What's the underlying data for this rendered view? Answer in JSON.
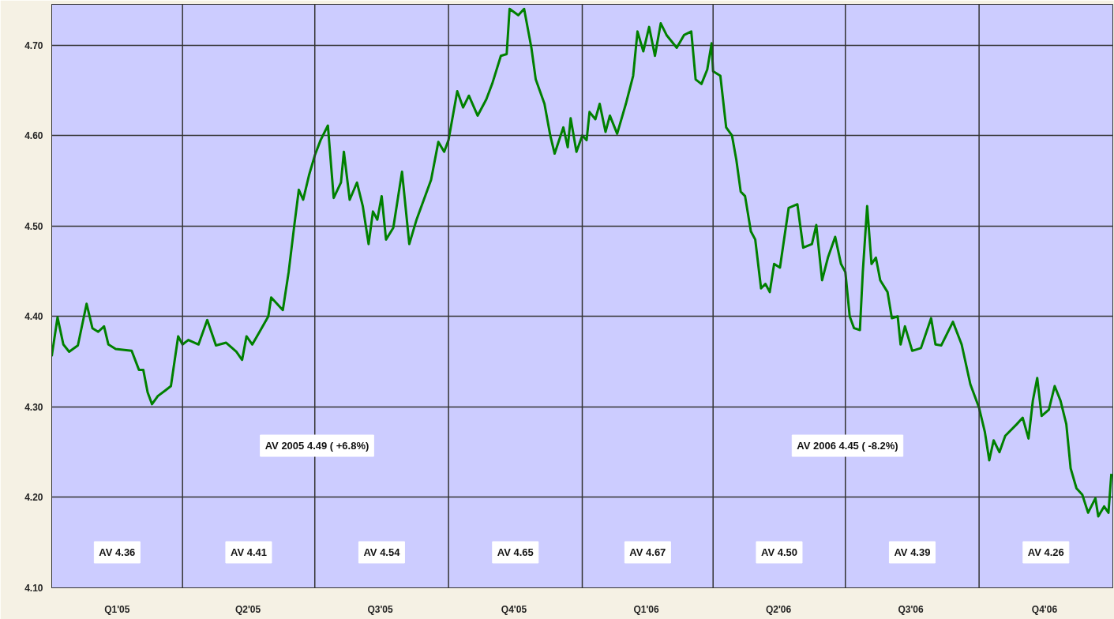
{
  "chart_data": {
    "type": "line",
    "xlim": [
      "2005-01-01",
      "2007-01-01"
    ],
    "xticks": [
      {
        "value": "2005-02-15",
        "label": "Q1'05"
      },
      {
        "value": "2005-05-16",
        "label": "Q2'05"
      },
      {
        "value": "2005-08-15",
        "label": "Q3'05"
      },
      {
        "value": "2005-11-15",
        "label": "Q4'05"
      },
      {
        "value": "2006-02-14",
        "label": "Q1'06"
      },
      {
        "value": "2006-05-16",
        "label": "Q2'06"
      },
      {
        "value": "2006-08-15",
        "label": "Q3'06"
      },
      {
        "value": "2006-11-15",
        "label": "Q4'06"
      }
    ],
    "ylim": [
      4.1,
      4.745
    ],
    "yticks": [
      {
        "value": 4.1,
        "label": "4.10"
      },
      {
        "value": 4.2,
        "label": "4.20"
      },
      {
        "value": 4.3,
        "label": "4.30"
      },
      {
        "value": 4.4,
        "label": "4.40"
      },
      {
        "value": 4.5,
        "label": "4.50"
      },
      {
        "value": 4.6,
        "label": "4.60"
      },
      {
        "value": 4.7,
        "label": "4.70"
      }
    ],
    "grid": "y",
    "marker": "none",
    "line_style": "solid",
    "ref_lines": [
      {
        "axis": "x",
        "value": "2005-04-01",
        "color": "#333333"
      },
      {
        "axis": "x",
        "value": "2005-07-01",
        "color": "#333333"
      },
      {
        "axis": "x",
        "value": "2005-10-01",
        "color": "#333333"
      },
      {
        "axis": "x",
        "value": "2006-01-01",
        "color": "#333333"
      },
      {
        "axis": "x",
        "value": "2006-04-01",
        "color": "#333333"
      },
      {
        "axis": "x",
        "value": "2006-07-01",
        "color": "#333333"
      },
      {
        "axis": "x",
        "value": "2006-10-01",
        "color": "#333333"
      }
    ],
    "annotations": [
      "AV 4.36",
      "AV 4.41",
      "AV 4.54",
      "AV 4.65",
      "AV 4.67",
      "AV 4.50",
      "AV 4.39",
      "AV 4.26",
      "AV 2005 4.49 ( +6.8%)",
      "AV 2006 4.45 ( -8.2%)"
    ],
    "series": [
      {
        "color": "#008000",
        "x": [
          "2005-01-01",
          "2005-01-05",
          "2005-01-09",
          "2005-01-13",
          "2005-01-19",
          "2005-01-25",
          "2005-01-29",
          "2005-02-02",
          "2005-02-06",
          "2005-02-09",
          "2005-02-14",
          "2005-02-20",
          "2005-02-25",
          "2005-03-02",
          "2005-03-05",
          "2005-03-08",
          "2005-03-11",
          "2005-03-15",
          "2005-03-20",
          "2005-03-24",
          "2005-03-29",
          "2005-04-01",
          "2005-04-05",
          "2005-04-12",
          "2005-04-18",
          "2005-04-24",
          "2005-05-01",
          "2005-05-08",
          "2005-05-12",
          "2005-05-15",
          "2005-05-19",
          "2005-05-24",
          "2005-05-30",
          "2005-06-01",
          "2005-06-09",
          "2005-06-13",
          "2005-06-17",
          "2005-06-20",
          "2005-06-23",
          "2005-06-27",
          "2005-07-01",
          "2005-07-05",
          "2005-07-10",
          "2005-07-14",
          "2005-07-19",
          "2005-07-21",
          "2005-07-25",
          "2005-07-30",
          "2005-08-03",
          "2005-08-07",
          "2005-08-10",
          "2005-08-13",
          "2005-08-16",
          "2005-08-19",
          "2005-08-24",
          "2005-08-30",
          "2005-09-04",
          "2005-09-09",
          "2005-09-14",
          "2005-09-19",
          "2005-09-24",
          "2005-09-28",
          "2005-10-01",
          "2005-10-07",
          "2005-10-11",
          "2005-10-15",
          "2005-10-21",
          "2005-10-27",
          "2005-10-31",
          "2005-11-06",
          "2005-11-10",
          "2005-11-12",
          "2005-11-18",
          "2005-11-22",
          "2005-11-27",
          "2005-11-30",
          "2005-12-06",
          "2005-12-10",
          "2005-12-13",
          "2005-12-19",
          "2005-12-22",
          "2005-12-24",
          "2005-12-28",
          "2006-01-01",
          "2006-01-04",
          "2006-01-06",
          "2006-01-10",
          "2006-01-13",
          "2006-01-17",
          "2006-01-20",
          "2006-01-25",
          "2006-01-31",
          "2006-02-05",
          "2006-02-08",
          "2006-02-12",
          "2006-02-16",
          "2006-02-20",
          "2006-02-24",
          "2006-02-28",
          "2006-03-07",
          "2006-03-12",
          "2006-03-17",
          "2006-03-20",
          "2006-03-24",
          "2006-03-28",
          "2006-03-31",
          "2006-04-01",
          "2006-04-06",
          "2006-04-10",
          "2006-04-14",
          "2006-04-17",
          "2006-04-20",
          "2006-04-23",
          "2006-04-27",
          "2006-04-30",
          "2006-05-04",
          "2006-05-07",
          "2006-05-10",
          "2006-05-13",
          "2006-05-17",
          "2006-05-23",
          "2006-05-29",
          "2006-06-02",
          "2006-06-08",
          "2006-06-11",
          "2006-06-15",
          "2006-06-19",
          "2006-06-24",
          "2006-06-28",
          "2006-07-01",
          "2006-07-04",
          "2006-07-07",
          "2006-07-11",
          "2006-07-13",
          "2006-07-16",
          "2006-07-19",
          "2006-07-22",
          "2006-07-25",
          "2006-07-30",
          "2006-08-02",
          "2006-08-06",
          "2006-08-08",
          "2006-08-11",
          "2006-08-16",
          "2006-08-22",
          "2006-08-29",
          "2006-09-01",
          "2006-09-05",
          "2006-09-13",
          "2006-09-19",
          "2006-09-25",
          "2006-10-01",
          "2006-10-05",
          "2006-10-08",
          "2006-10-11",
          "2006-10-15",
          "2006-10-19",
          "2006-10-27",
          "2006-10-31",
          "2006-11-04",
          "2006-11-07",
          "2006-11-10",
          "2006-11-13",
          "2006-11-18",
          "2006-11-22",
          "2006-11-26",
          "2006-11-30",
          "2006-12-03",
          "2006-12-07",
          "2006-12-11",
          "2006-12-15",
          "2006-12-20",
          "2006-12-22",
          "2006-12-26",
          "2006-12-29",
          "2006-12-31"
        ],
        "values": [
          4.356,
          4.399,
          4.369,
          4.361,
          4.368,
          4.414,
          4.387,
          4.383,
          4.389,
          4.369,
          4.364,
          4.363,
          4.362,
          4.341,
          4.341,
          4.316,
          4.303,
          4.312,
          4.318,
          4.323,
          4.378,
          4.369,
          4.374,
          4.369,
          4.396,
          4.368,
          4.371,
          4.361,
          4.352,
          4.378,
          4.369,
          4.383,
          4.4,
          4.421,
          4.407,
          4.449,
          4.502,
          4.54,
          4.529,
          4.556,
          4.578,
          4.595,
          4.611,
          4.531,
          4.548,
          4.582,
          4.529,
          4.548,
          4.522,
          4.48,
          4.516,
          4.507,
          4.533,
          4.485,
          4.498,
          4.56,
          4.48,
          4.507,
          4.529,
          4.551,
          4.593,
          4.582,
          4.595,
          4.649,
          4.631,
          4.644,
          4.622,
          4.64,
          4.657,
          4.688,
          4.69,
          4.74,
          4.733,
          4.74,
          4.697,
          4.662,
          4.635,
          4.6,
          4.58,
          4.609,
          4.587,
          4.619,
          4.582,
          4.6,
          4.595,
          4.626,
          4.618,
          4.635,
          4.604,
          4.622,
          4.602,
          4.635,
          4.666,
          4.715,
          4.693,
          4.72,
          4.688,
          4.724,
          4.711,
          4.697,
          4.711,
          4.715,
          4.662,
          4.657,
          4.673,
          4.702,
          4.671,
          4.666,
          4.609,
          4.6,
          4.573,
          4.538,
          4.533,
          4.494,
          4.485,
          4.431,
          4.436,
          4.427,
          4.458,
          4.454,
          4.52,
          4.524,
          4.476,
          4.48,
          4.501,
          4.44,
          4.465,
          4.488,
          4.458,
          4.449,
          4.4,
          4.387,
          4.385,
          4.449,
          4.522,
          4.458,
          4.465,
          4.44,
          4.427,
          4.398,
          4.4,
          4.369,
          4.389,
          4.362,
          4.365,
          4.398,
          4.369,
          4.368,
          4.394,
          4.369,
          4.325,
          4.299,
          4.272,
          4.241,
          4.263,
          4.25,
          4.268,
          4.281,
          4.288,
          4.265,
          4.307,
          4.332,
          4.29,
          4.297,
          4.323,
          4.307,
          4.281,
          4.232,
          4.21,
          4.203,
          4.183,
          4.199,
          4.179,
          4.19,
          4.183,
          4.226
        ]
      }
    ]
  }
}
